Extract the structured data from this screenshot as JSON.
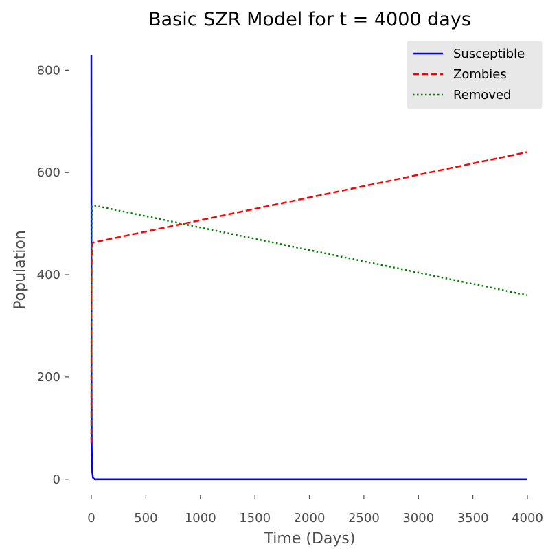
{
  "chart_data": {
    "type": "line",
    "title": "Basic SZR Model for t = 4000 days",
    "xlabel": "Time (Days)",
    "ylabel": "Population",
    "xlim": [
      0,
      4000
    ],
    "ylim": [
      -50,
      830
    ],
    "xticks": [
      0,
      500,
      1000,
      1500,
      2000,
      2500,
      3000,
      3500,
      4000
    ],
    "yticks": [
      0,
      200,
      400,
      600,
      800
    ],
    "grid": false,
    "legend": "top-right",
    "series": [
      {
        "name": "Susceptible",
        "color": "#0000ff",
        "dash": "solid",
        "x": [
          0,
          1,
          2,
          4,
          8,
          15,
          30,
          100,
          4000
        ],
        "y": [
          830,
          500,
          200,
          60,
          15,
          3,
          0,
          0,
          0
        ]
      },
      {
        "name": "Zombies",
        "color": "#ff0000",
        "dash": "dashed",
        "x": [
          0,
          1,
          2,
          4,
          8,
          15,
          4000
        ],
        "y": [
          70,
          250,
          380,
          440,
          458,
          463,
          640
        ]
      },
      {
        "name": "Removed",
        "color": "#008000",
        "dash": "dotted",
        "x": [
          0,
          1,
          2,
          4,
          8,
          15,
          4000
        ],
        "y": [
          80,
          300,
          450,
          520,
          534,
          536,
          360
        ]
      }
    ]
  }
}
